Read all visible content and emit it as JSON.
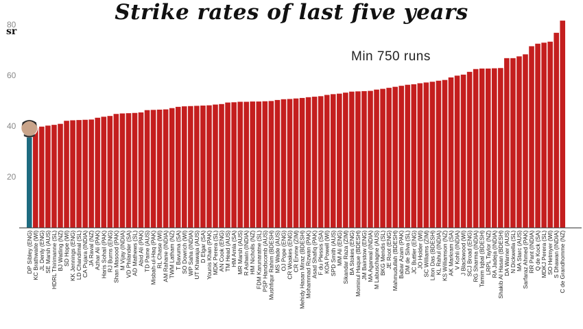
{
  "chart_data": {
    "type": "bar",
    "title": "Strike rates of last five years",
    "ylabel": "sr",
    "annotation": "Min 750 runs",
    "ylim": [
      0,
      83
    ],
    "yticks": [
      20,
      40,
      60,
      80
    ],
    "colors": {
      "bar": "#c41e1e",
      "highlight": "#1e6b80",
      "axis": "#555555"
    },
    "highlight_index": 0,
    "categories": [
      "DP Sibley (ENG)",
      "KC Brathwaite (WI)",
      "JL Denly (ENG)",
      "SE Marsh (AUS)",
      "HDRL Thirimanne (SL)",
      "BJ Watling (NZ)",
      "SD Hope (WI)",
      "KK Jennings (ENG)",
      "LD Chandimal (SL)",
      "CA Pujara (INDIA)",
      "JA Raval (NZ)",
      "Azhar Ali (PAK)",
      "Haris Sohail (PAK)",
      "RJ Burns (ENG)",
      "Shan Masood (PAK)",
      "M Vijay (INDIA)",
      "VD Philander (SA)",
      "AD Mathews (SL)",
      "Abid Ali (PAK)",
      "TD Paine (AUS)",
      "Misbah-ul-Haq (PAK)",
      "RL Chase (WI)",
      "AM Rahane (INDIA)",
      "TWM Latham (NZ)",
      "T Bavuma (SA)",
      "SO Dowrich (WI)",
      "WP Saha (INDIA)",
      "UT Khawaja (AUS)",
      "D Elgar (SA)",
      "Younis Khan (PAK)",
      "MDK Perera (SL)",
      "AN Cook (ENG)",
      "TM Head (AUS)",
      "HM Amla (SA)",
      "MR Marsh (AUS)",
      "R Ashwin (INDIA)",
      "HM Nicholls (NZ)",
      "FDM Karunaratne (SL)",
      "PSP Handscomb (AUS)",
      "Mushfiqur Rahim (BDESH)",
      "MS Wade (AUS)",
      "OJ Pope (ENG)",
      "CR Woakes (ENG)",
      "CR Ervine (ZIM)",
      "Mehidy Hasan Miraz (BDESH)",
      "Mohammad Rizwan (PAK)",
      "Asad Shafiq (PAK)",
      "F du Plessis (SA)",
      "KOA Powell (WI)",
      "SPD Smith (AUS)",
      "MM Ali (ENG)",
      "Sikandar Raza (ZIM)",
      "BA Stokes (ENG)",
      "Mominul Haque (BDESH)",
      "JM Bairstow (ENG)",
      "MA Agarwal (INDIA)",
      "M Labuschagne (AUS)",
      "BKG Mendis (SL)",
      "JE Root (ENG)",
      "Mahmudullah (BDESH)",
      "Babar Azam (PAK)",
      "DM de Silva (SL)",
      "JC Buttler (ENG)",
      "JO Holder (WI)",
      "SC Williams (ZIM)",
      "Liton Das (BDESH)",
      "KL Rahul (INDIA)",
      "KS Williamson (NZ)",
      "AK Markram (SA)",
      "V Kohli (INDIA)",
      "J Blackwood (WI)",
      "SCJ Broad (ENG)",
      "RG Sharma (INDIA)",
      "Tamim Iqbal (BDESH)",
      "LRPL Taylor (NZ)",
      "RA Jadeja (INDIA)",
      "Shakib Al Hasan (BDESH)",
      "DA Warner (AUS)",
      "N Dickwella (SL)",
      "MA Starc (AUS)",
      "Sarfaraz Ahmed (PAK)",
      "RR Pant (INDIA)",
      "Q de Kock (SA)",
      "MDKJ Perera (SL)",
      "SO Hetmyer (WI)",
      "S Dhawan (INDIA)",
      "C de Grandhomme (NZ)"
    ],
    "values": [
      35.5,
      39.3,
      39.8,
      40.2,
      40.5,
      40.9,
      42.1,
      42.3,
      42.4,
      42.5,
      42.6,
      43.3,
      43.7,
      44.0,
      44.8,
      45.0,
      45.1,
      45.2,
      45.4,
      46.3,
      46.4,
      46.5,
      46.6,
      47.1,
      47.6,
      47.8,
      47.9,
      48.0,
      48.1,
      48.2,
      48.5,
      48.7,
      49.3,
      49.4,
      49.6,
      49.6,
      49.7,
      49.7,
      49.8,
      49.9,
      50.3,
      50.6,
      50.7,
      50.9,
      51.1,
      51.4,
      51.6,
      51.8,
      52.3,
      52.6,
      52.8,
      53.2,
      53.6,
      53.7,
      53.8,
      53.9,
      54.4,
      54.7,
      55.1,
      55.5,
      55.9,
      56.3,
      56.5,
      56.9,
      57.2,
      57.5,
      57.9,
      58.2,
      59.2,
      59.9,
      60.3,
      61.4,
      62.5,
      62.7,
      62.7,
      62.8,
      62.9,
      66.8,
      66.8,
      67.5,
      68.3,
      71.5,
      72.5,
      72.9,
      73.3,
      76.8,
      81.6
    ]
  }
}
